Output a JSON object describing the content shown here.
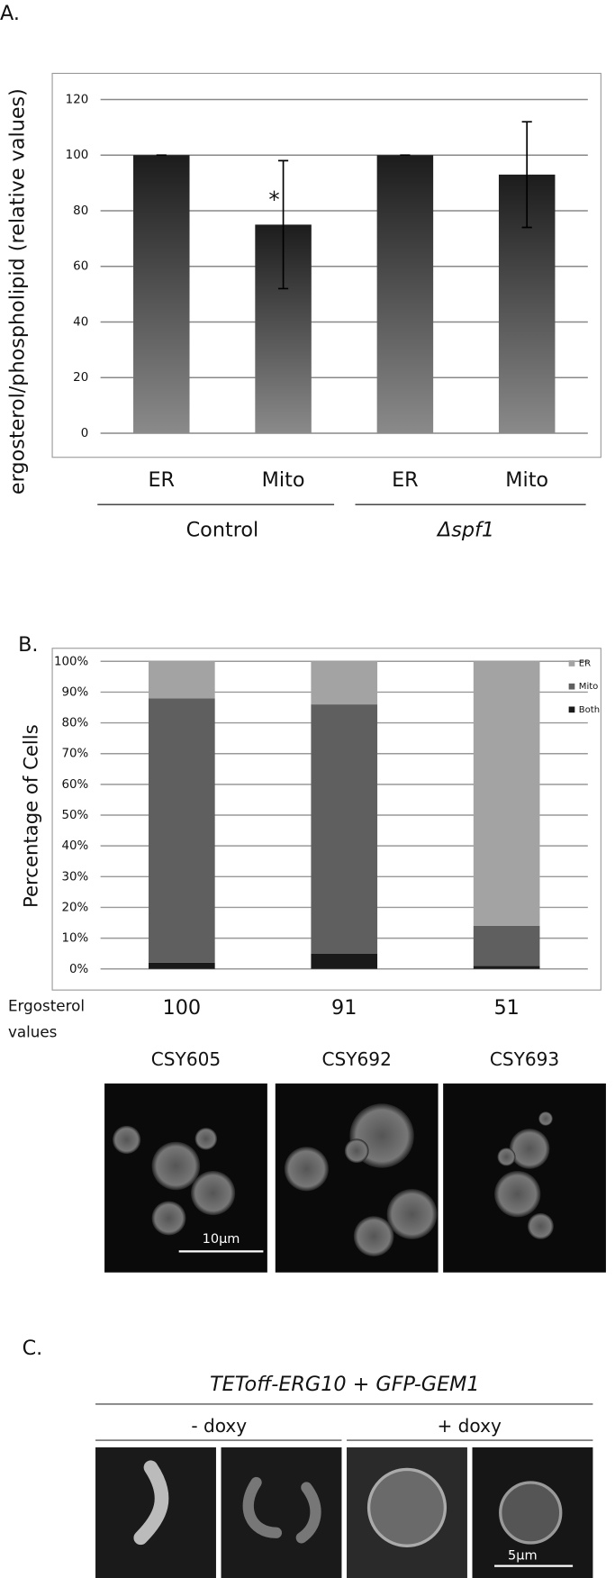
{
  "panels": [
    "A.",
    "B.",
    "C."
  ],
  "chart_data": [
    {
      "type": "bar",
      "y_label": "ergosterol/phospholipid (relative values)",
      "categories": [
        "ER",
        "Mito",
        "ER",
        "Mito"
      ],
      "groups": [
        "Control",
        "Δspf1"
      ],
      "values": [
        100,
        75,
        100,
        93
      ],
      "errors": [
        0,
        23,
        0,
        19
      ],
      "annotations": [
        "*"
      ],
      "color": "#1c1c1c",
      "ylim": [
        0,
        120
      ],
      "yticks": [
        0,
        20,
        40,
        60,
        80,
        100,
        120
      ],
      "grid": true
    },
    {
      "type": "stacked_bar",
      "y_label": "Percentage of Cells",
      "x_label": "Ergosterol values",
      "categories": [
        "100",
        "91",
        "51"
      ],
      "series": [
        {
          "name": "Both",
          "color": "#1a1a1a",
          "values": [
            2,
            5,
            1
          ]
        },
        {
          "name": "Mito",
          "color": "#5f5f5f",
          "values": [
            86,
            81,
            13
          ]
        },
        {
          "name": "ER",
          "color": "#a3a3a3",
          "values": [
            12,
            14,
            86
          ]
        }
      ],
      "ylim": [
        0,
        100
      ],
      "yticks": [
        {
          "value": 0,
          "label": "0%"
        },
        {
          "value": 10,
          "label": "10%"
        },
        {
          "value": 20,
          "label": "20%"
        },
        {
          "value": 30,
          "label": "30%"
        },
        {
          "value": 40,
          "label": "40%"
        },
        {
          "value": 50,
          "label": "50%"
        },
        {
          "value": 60,
          "label": "60%"
        },
        {
          "value": 70,
          "label": "70%"
        },
        {
          "value": 80,
          "label": "80%"
        },
        {
          "value": 90,
          "label": "90%"
        },
        {
          "value": 100,
          "label": "100%"
        }
      ],
      "grid": true,
      "legend": "top-right"
    }
  ],
  "strains": [
    "CSY605",
    "CSY692",
    "CSY693"
  ],
  "scale_bars": [
    "10μm",
    "5μm"
  ],
  "panel_c": {
    "title": "TEToff-ERG10 + GFP-GEM1",
    "conditions": [
      "- doxy",
      "+ doxy"
    ]
  }
}
